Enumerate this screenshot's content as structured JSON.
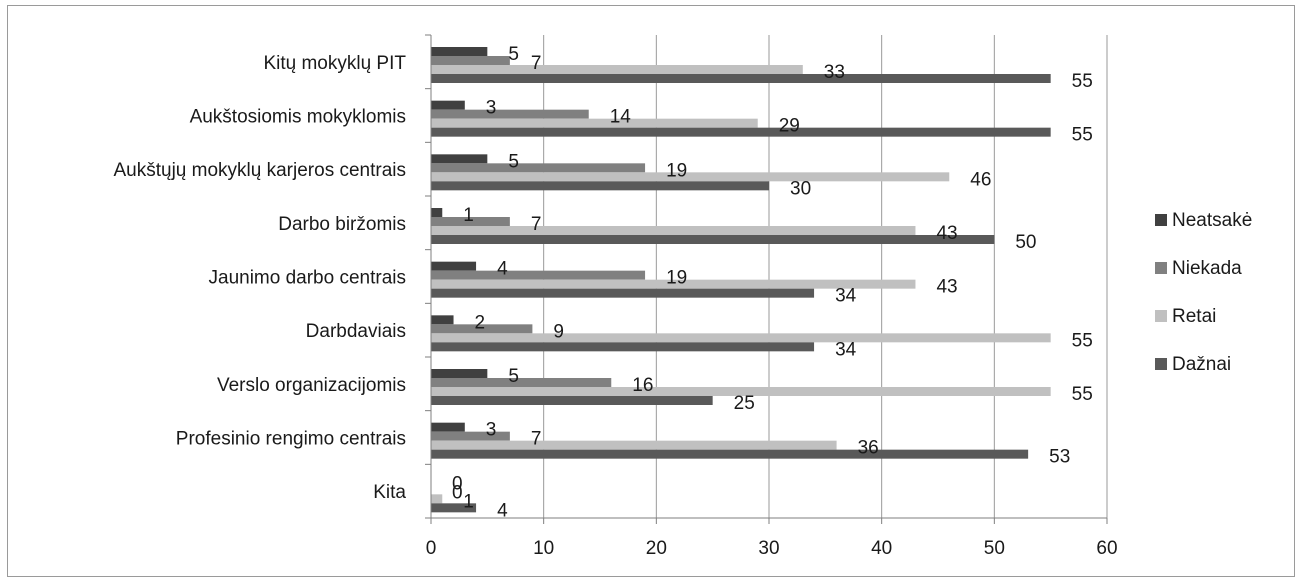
{
  "chart_data": {
    "type": "bar",
    "orientation": "horizontal",
    "title": "",
    "xlabel": "",
    "ylabel": "",
    "categories": [
      "Kitų mokyklų PIT",
      "Aukštosiomis mokyklomis",
      "Aukštųjų mokyklų karjeros centrais",
      "Darbo biržomis",
      "Jaunimo darbo centrais",
      "Darbdaviais",
      "Verslo organizacijomis",
      "Profesinio rengimo centrais",
      "Kita"
    ],
    "series": [
      {
        "name": "Neatsakė",
        "color": "#404040",
        "values": [
          5,
          3,
          5,
          1,
          4,
          2,
          5,
          3,
          0
        ]
      },
      {
        "name": "Niekada",
        "color": "#808080",
        "values": [
          7,
          14,
          19,
          7,
          19,
          9,
          16,
          7,
          0
        ]
      },
      {
        "name": "Retai",
        "color": "#c0c0c0",
        "values": [
          33,
          29,
          46,
          43,
          43,
          55,
          55,
          36,
          1
        ]
      },
      {
        "name": "Dažnai",
        "color": "#595959",
        "values": [
          55,
          55,
          30,
          50,
          34,
          34,
          25,
          53,
          4
        ]
      }
    ],
    "xlim": [
      0,
      60
    ],
    "xticks": [
      0,
      10,
      20,
      30,
      40,
      50,
      60
    ],
    "grid": true,
    "legend": "right"
  }
}
